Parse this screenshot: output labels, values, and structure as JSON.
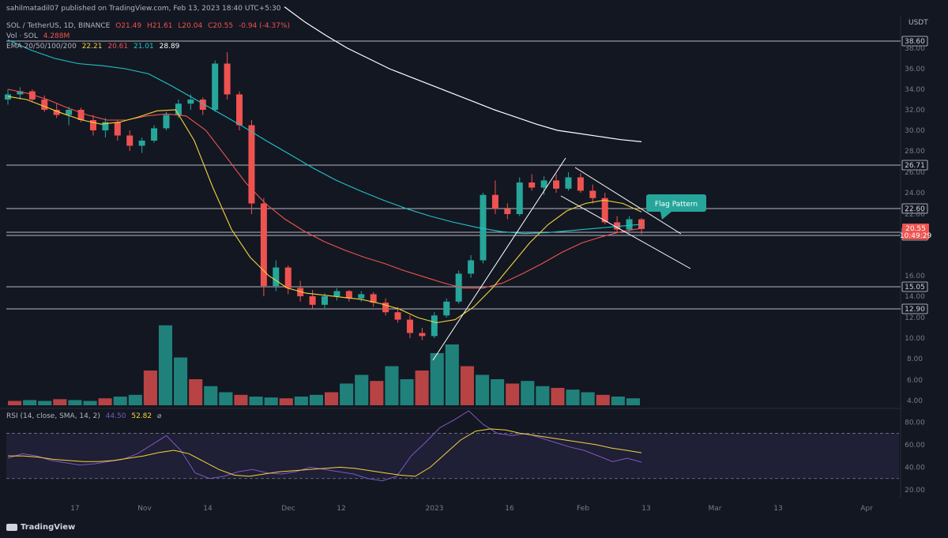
{
  "header": {
    "published": "sahilmatadil07 published on TradingView.com, Feb 13, 2023 18:40 UTC+5:30",
    "symbol": "SOL / TetherUS, 1D, BINANCE",
    "ohlc": {
      "o": "O21.49",
      "h": "H21.61",
      "l": "L20.04",
      "c": "C20.55",
      "chg": "-0.94 (-4.37%)"
    },
    "vol_label": "Vol · SOL",
    "vol_value": "4.288M",
    "ema_label": "EMA 20/50/100/200",
    "ema_values": [
      "22.21",
      "20.61",
      "21.01",
      "28.89"
    ]
  },
  "price_axis": {
    "currency": "USDT",
    "ticks": [
      "38.00",
      "36.00",
      "34.00",
      "32.00",
      "30.00",
      "28.00",
      "26.00",
      "24.00",
      "22.00",
      "16.00",
      "14.00",
      "12.00",
      "10.00",
      "8.00",
      "6.00",
      "4.00"
    ],
    "level_labels": [
      "38.60",
      "26.71",
      "22.60",
      "20.34",
      "20.04",
      "15.05",
      "12.90"
    ],
    "last_price": "20.55",
    "countdown": "10:49:29"
  },
  "time_axis": {
    "ticks": [
      "17",
      "Nov",
      "14",
      "Dec",
      "12",
      "2023",
      "16",
      "Feb",
      "13",
      "Mar",
      "13",
      "Apr"
    ]
  },
  "annotation": {
    "flag_label": "Flag Pattern"
  },
  "rsi": {
    "label": "RSI (14, close, SMA, 14, 2)",
    "rsi_value": "44.50",
    "sma_value": "52.82",
    "ticks": [
      "80.00",
      "60.00",
      "40.00",
      "20.00"
    ]
  },
  "footer": {
    "brand": "TradingView"
  },
  "colors": {
    "background": "#131722",
    "up": "#26a69a",
    "down": "#ef5350",
    "ema20": "#f5d33b",
    "ema50": "#ef5350",
    "ema100": "#22c3c9",
    "ema200": "#ffffff",
    "rsi_line": "#7e57c2",
    "rsi_sma": "#f5d33b",
    "flag_label_bg": "#26a69a"
  },
  "chart_data": {
    "type": "candlestick",
    "x_range": [
      "2022-10-02",
      "2023-04-03"
    ],
    "y_range": [
      4,
      38.6
    ],
    "horizontal_levels": [
      38.6,
      26.71,
      22.6,
      20.34,
      20.04,
      15.05,
      12.9
    ],
    "candles_ohlc_sample": [
      [
        33.0,
        34.0,
        32.5,
        33.5
      ],
      [
        33.5,
        34.2,
        33.0,
        33.8
      ],
      [
        33.8,
        34.0,
        32.8,
        33.0
      ],
      [
        33.0,
        33.4,
        31.8,
        32.0
      ],
      [
        32.0,
        32.6,
        31.2,
        31.5
      ],
      [
        31.5,
        32.3,
        30.5,
        32.0
      ],
      [
        32.0,
        32.2,
        30.8,
        31.0
      ],
      [
        31.0,
        31.5,
        29.5,
        30.0
      ],
      [
        30.0,
        31.2,
        29.3,
        30.8
      ],
      [
        30.8,
        31.0,
        29.0,
        29.5
      ],
      [
        29.5,
        30.0,
        28.0,
        28.5
      ],
      [
        28.5,
        29.3,
        27.8,
        29.0
      ],
      [
        29.0,
        30.5,
        28.8,
        30.2
      ],
      [
        30.2,
        31.8,
        30.0,
        31.5
      ],
      [
        31.5,
        33.0,
        31.2,
        32.6
      ],
      [
        32.6,
        33.5,
        32.0,
        33.0
      ],
      [
        33.0,
        33.2,
        31.5,
        32.0
      ],
      [
        32.0,
        36.8,
        31.8,
        36.5
      ],
      [
        36.5,
        37.6,
        33.0,
        33.5
      ],
      [
        33.5,
        33.8,
        30.0,
        30.5
      ],
      [
        30.5,
        31.0,
        22.0,
        23.0
      ],
      [
        23.0,
        23.5,
        14.0,
        15.0
      ],
      [
        15.0,
        17.5,
        14.5,
        16.8
      ],
      [
        16.8,
        17.0,
        14.2,
        14.8
      ],
      [
        14.8,
        15.5,
        13.5,
        14.0
      ],
      [
        14.0,
        14.6,
        12.8,
        13.2
      ],
      [
        13.2,
        14.3,
        12.9,
        14.0
      ],
      [
        14.0,
        14.8,
        13.6,
        14.5
      ],
      [
        14.5,
        14.6,
        13.5,
        13.8
      ],
      [
        13.8,
        14.5,
        13.5,
        14.2
      ],
      [
        14.2,
        14.4,
        13.0,
        13.4
      ],
      [
        13.4,
        13.8,
        12.2,
        12.5
      ],
      [
        12.5,
        13.0,
        11.5,
        11.8
      ],
      [
        11.8,
        12.2,
        10.0,
        10.5
      ],
      [
        10.5,
        11.0,
        9.8,
        10.2
      ],
      [
        10.2,
        12.5,
        10.0,
        12.2
      ],
      [
        12.2,
        13.8,
        12.0,
        13.5
      ],
      [
        13.5,
        16.5,
        13.3,
        16.2
      ],
      [
        16.2,
        18.0,
        15.8,
        17.5
      ],
      [
        17.5,
        24.0,
        17.2,
        23.8
      ],
      [
        23.8,
        25.2,
        22.0,
        22.5
      ],
      [
        22.5,
        23.0,
        21.5,
        22.0
      ],
      [
        22.0,
        25.5,
        21.8,
        25.0
      ],
      [
        25.0,
        25.8,
        24.2,
        24.5
      ],
      [
        24.5,
        25.6,
        23.8,
        25.2
      ],
      [
        25.2,
        25.8,
        24.0,
        24.4
      ],
      [
        24.4,
        26.0,
        24.2,
        25.5
      ],
      [
        25.5,
        25.9,
        24.0,
        24.2
      ],
      [
        24.2,
        24.8,
        23.0,
        23.5
      ],
      [
        23.5,
        24.0,
        21.0,
        21.2
      ],
      [
        21.2,
        21.8,
        20.2,
        20.5
      ],
      [
        20.5,
        21.8,
        20.3,
        21.5
      ],
      [
        21.49,
        21.61,
        20.04,
        20.55
      ]
    ],
    "ema_series": {
      "ema20": [
        33.3,
        33.0,
        32.3,
        31.6,
        31.0,
        30.6,
        30.8,
        31.3,
        31.9,
        32.0,
        29.0,
        24.5,
        20.5,
        17.8,
        16.0,
        14.8,
        14.3,
        14.1,
        13.9,
        13.7,
        13.3,
        12.8,
        12.0,
        11.5,
        11.8,
        13.0,
        14.8,
        17.0,
        19.2,
        21.0,
        22.3,
        23.0,
        23.3,
        23.0,
        22.21
      ],
      "ema50": [
        34.0,
        33.6,
        33.0,
        32.2,
        31.5,
        31.0,
        31.0,
        31.4,
        31.6,
        31.4,
        30.0,
        27.5,
        25.0,
        23.0,
        21.5,
        20.3,
        19.3,
        18.5,
        17.8,
        17.2,
        16.5,
        15.9,
        15.3,
        14.8,
        14.8,
        15.3,
        16.2,
        17.2,
        18.3,
        19.2,
        19.8,
        20.3,
        20.61
      ],
      "ema100": [
        38.8,
        37.8,
        37.0,
        36.5,
        36.3,
        36.0,
        35.5,
        34.3,
        33.0,
        31.7,
        30.4,
        29.0,
        27.7,
        26.4,
        25.2,
        24.2,
        23.3,
        22.5,
        21.8,
        21.2,
        20.7,
        20.3,
        20.1,
        20.2,
        20.4,
        20.6,
        20.8,
        21.01
      ],
      "ema200": [
        42.0,
        40.5,
        39.2,
        38.0,
        37.0,
        36.0,
        35.2,
        34.4,
        33.6,
        32.8,
        32.0,
        31.3,
        30.6,
        30.0,
        29.7,
        29.4,
        29.1,
        28.89
      ]
    },
    "volume_relative_sample": [
      0.05,
      0.06,
      0.05,
      0.07,
      0.06,
      0.05,
      0.08,
      0.1,
      0.12,
      0.4,
      0.92,
      0.55,
      0.3,
      0.22,
      0.15,
      0.12,
      0.1,
      0.09,
      0.08,
      0.1,
      0.12,
      0.15,
      0.25,
      0.35,
      0.28,
      0.45,
      0.3,
      0.4,
      0.6,
      0.7,
      0.45,
      0.35,
      0.3,
      0.25,
      0.28,
      0.22,
      0.2,
      0.18,
      0.15,
      0.12,
      0.1,
      0.08
    ],
    "rsi_series": [
      48,
      52,
      50,
      46,
      44,
      42,
      43,
      45,
      47,
      52,
      60,
      68,
      55,
      35,
      30,
      32,
      36,
      38,
      35,
      34,
      36,
      40,
      38,
      36,
      34,
      30,
      28,
      32,
      50,
      62,
      75,
      82,
      90,
      78,
      70,
      68,
      70,
      66,
      62,
      58,
      55,
      50,
      45,
      48,
      44.5
    ],
    "rsi_sma_series": [
      50,
      50,
      49,
      47,
      46,
      45,
      45,
      46,
      48,
      50,
      53,
      55,
      52,
      45,
      38,
      33,
      32,
      34,
      36,
      37,
      38,
      39,
      40,
      39,
      37,
      35,
      33,
      32,
      40,
      52,
      64,
      72,
      74,
      73,
      70,
      68,
      66,
      64,
      62,
      60,
      57,
      55,
      52.82
    ],
    "rsi_range": [
      20,
      90
    ],
    "rsi_bands": [
      70,
      30
    ]
  }
}
